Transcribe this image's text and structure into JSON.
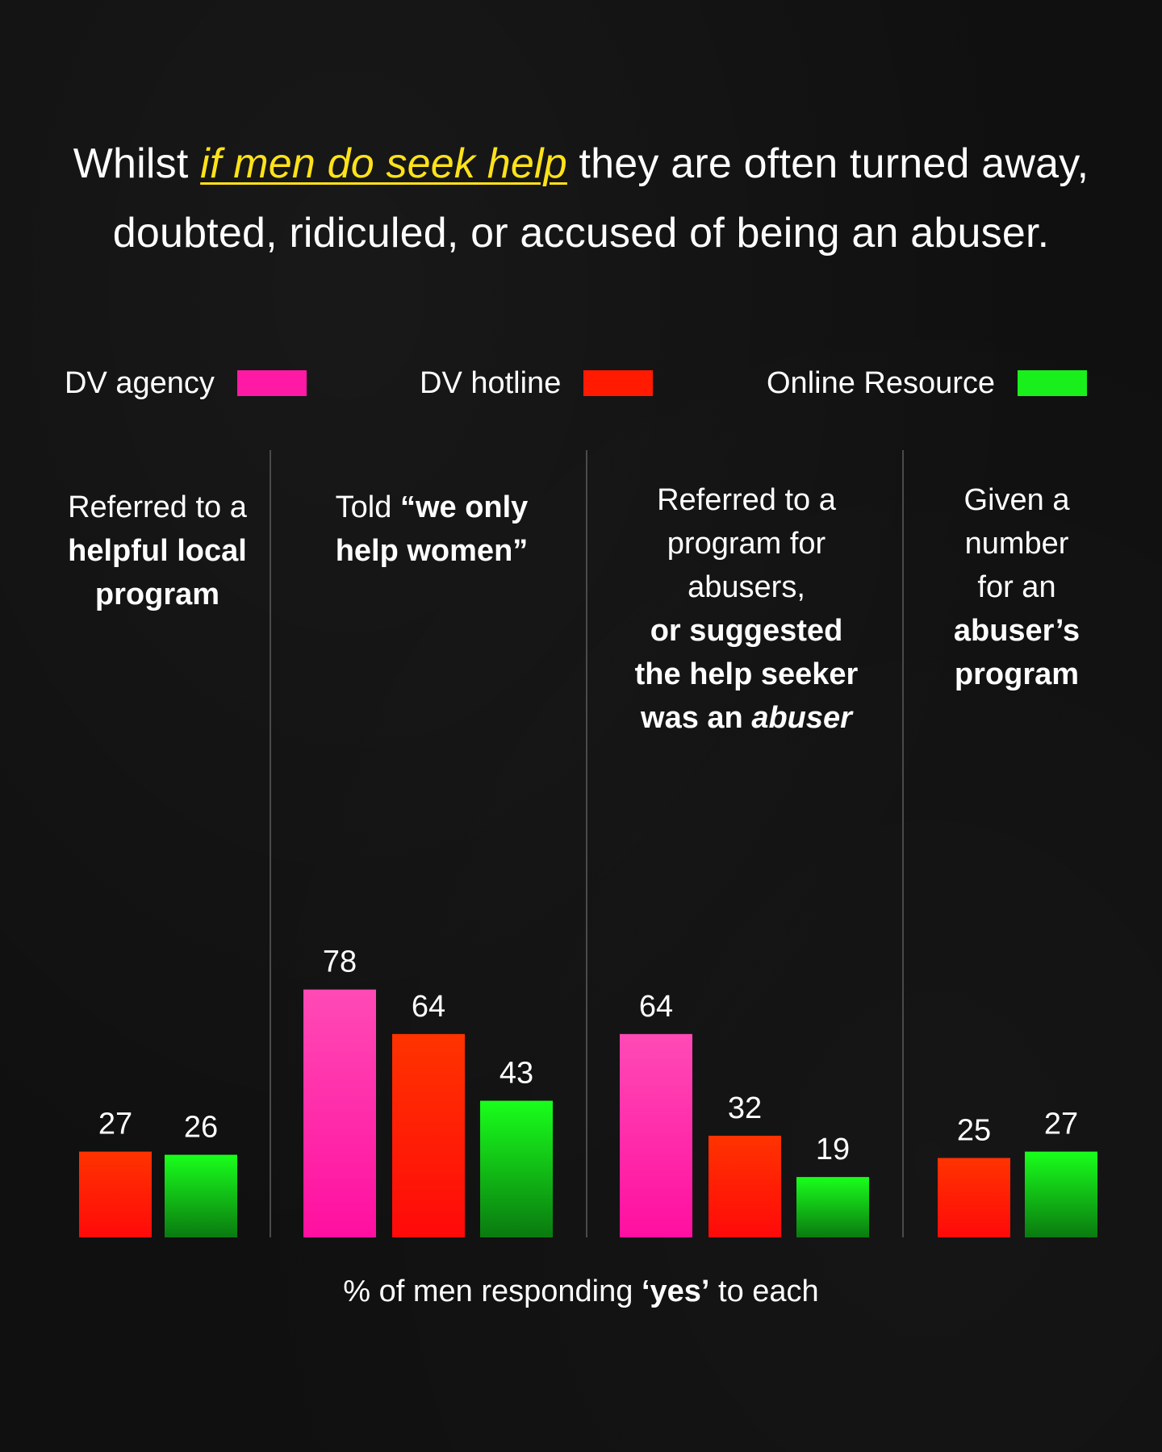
{
  "headline": {
    "pre": "Whilst ",
    "highlight": "if men do seek help",
    "post": " they are often turned away,",
    "line2": "doubted, ridiculed, or accused of being an abuser."
  },
  "legend": [
    {
      "label": "DV agency",
      "color": "#ff1aa6"
    },
    {
      "label": "DV hotline",
      "color": "#ff1a00"
    },
    {
      "label": "Online Resource",
      "color": "#19f01b"
    }
  ],
  "panels": [
    {
      "line1": "Referred to a",
      "bold1": "helpful local",
      "bold2": "program"
    },
    {
      "normal": "Told ",
      "bold": "“we only",
      "bold2": "help women”"
    },
    {
      "l1": "Referred to a",
      "l2": "program for",
      "l3": "abusers,",
      "b1": "or suggested",
      "b2": "the help seeker",
      "b3": "was an ",
      "b3i": "abuser"
    },
    {
      "l1": "Given a",
      "l2": "number",
      "l3": "for an",
      "b1": "abuser’s",
      "b2": "program"
    }
  ],
  "footer": {
    "pre": "% of men responding ",
    "bold": "‘yes’",
    "post": " to each"
  },
  "chart_data": {
    "type": "bar",
    "categories": [
      "Referred to a helpful local program",
      "Told “we only help women”",
      "Referred to a program for abusers, or suggested the help seeker was an abuser",
      "Given a number for an abuser’s program"
    ],
    "series": [
      {
        "name": "DV agency",
        "color": "#ff1aa6",
        "values": [
          null,
          78,
          64,
          null
        ]
      },
      {
        "name": "DV hotline",
        "color": "#ff1a00",
        "values": [
          27,
          64,
          32,
          25
        ]
      },
      {
        "name": "Online Resource",
        "color": "#19f01b",
        "values": [
          26,
          43,
          19,
          27
        ]
      }
    ],
    "ylabel": "% of men responding ‘yes’ to each",
    "ylim": [
      0,
      100
    ],
    "legend_position": "top",
    "grid": false
  }
}
